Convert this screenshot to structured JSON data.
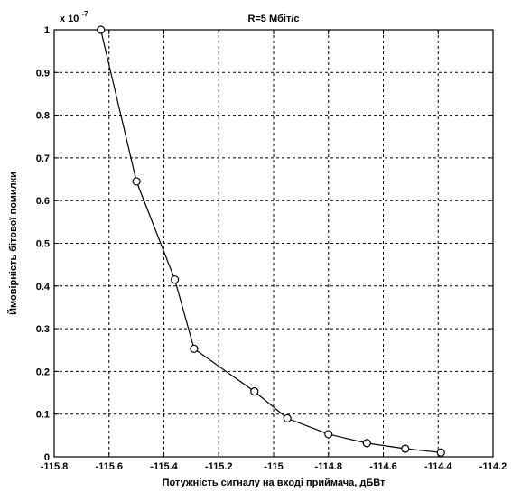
{
  "chart_data": {
    "type": "line",
    "title": "R=5 Мбіт/с",
    "xlabel": "Потужність сигналу на вході приймача, дБВт",
    "ylabel": "Ймовірність бітової помилки",
    "y_multiplier": "x 10",
    "y_multiplier_exp": "-7",
    "xlim": [
      -115.8,
      -114.2
    ],
    "ylim": [
      0,
      1
    ],
    "x_ticks": [
      -115.8,
      -115.6,
      -115.4,
      -115.2,
      -115,
      -114.8,
      -114.6,
      -114.4,
      -114.2
    ],
    "x_tick_labels": [
      "-115.8",
      "-115.6",
      "-115.4",
      "-115.2",
      "-115",
      "-114.8",
      "-114.6",
      "-114.4",
      "-114.2"
    ],
    "y_ticks": [
      0,
      0.1,
      0.2,
      0.3,
      0.4,
      0.5,
      0.6,
      0.7,
      0.8,
      0.9,
      1
    ],
    "y_tick_labels": [
      "0",
      "0.1",
      "0.2",
      "0.3",
      "0.4",
      "0.5",
      "0.6",
      "0.7",
      "0.8",
      "0.9",
      "1"
    ],
    "grid": true,
    "series": [
      {
        "x": [
          -115.63,
          -115.5,
          -115.36,
          -115.29,
          -115.07,
          -114.95,
          -114.8,
          -114.66,
          -114.52,
          -114.39
        ],
        "y": [
          1.0,
          0.645,
          0.415,
          0.253,
          0.153,
          0.09,
          0.053,
          0.032,
          0.019,
          0.01
        ]
      }
    ]
  }
}
